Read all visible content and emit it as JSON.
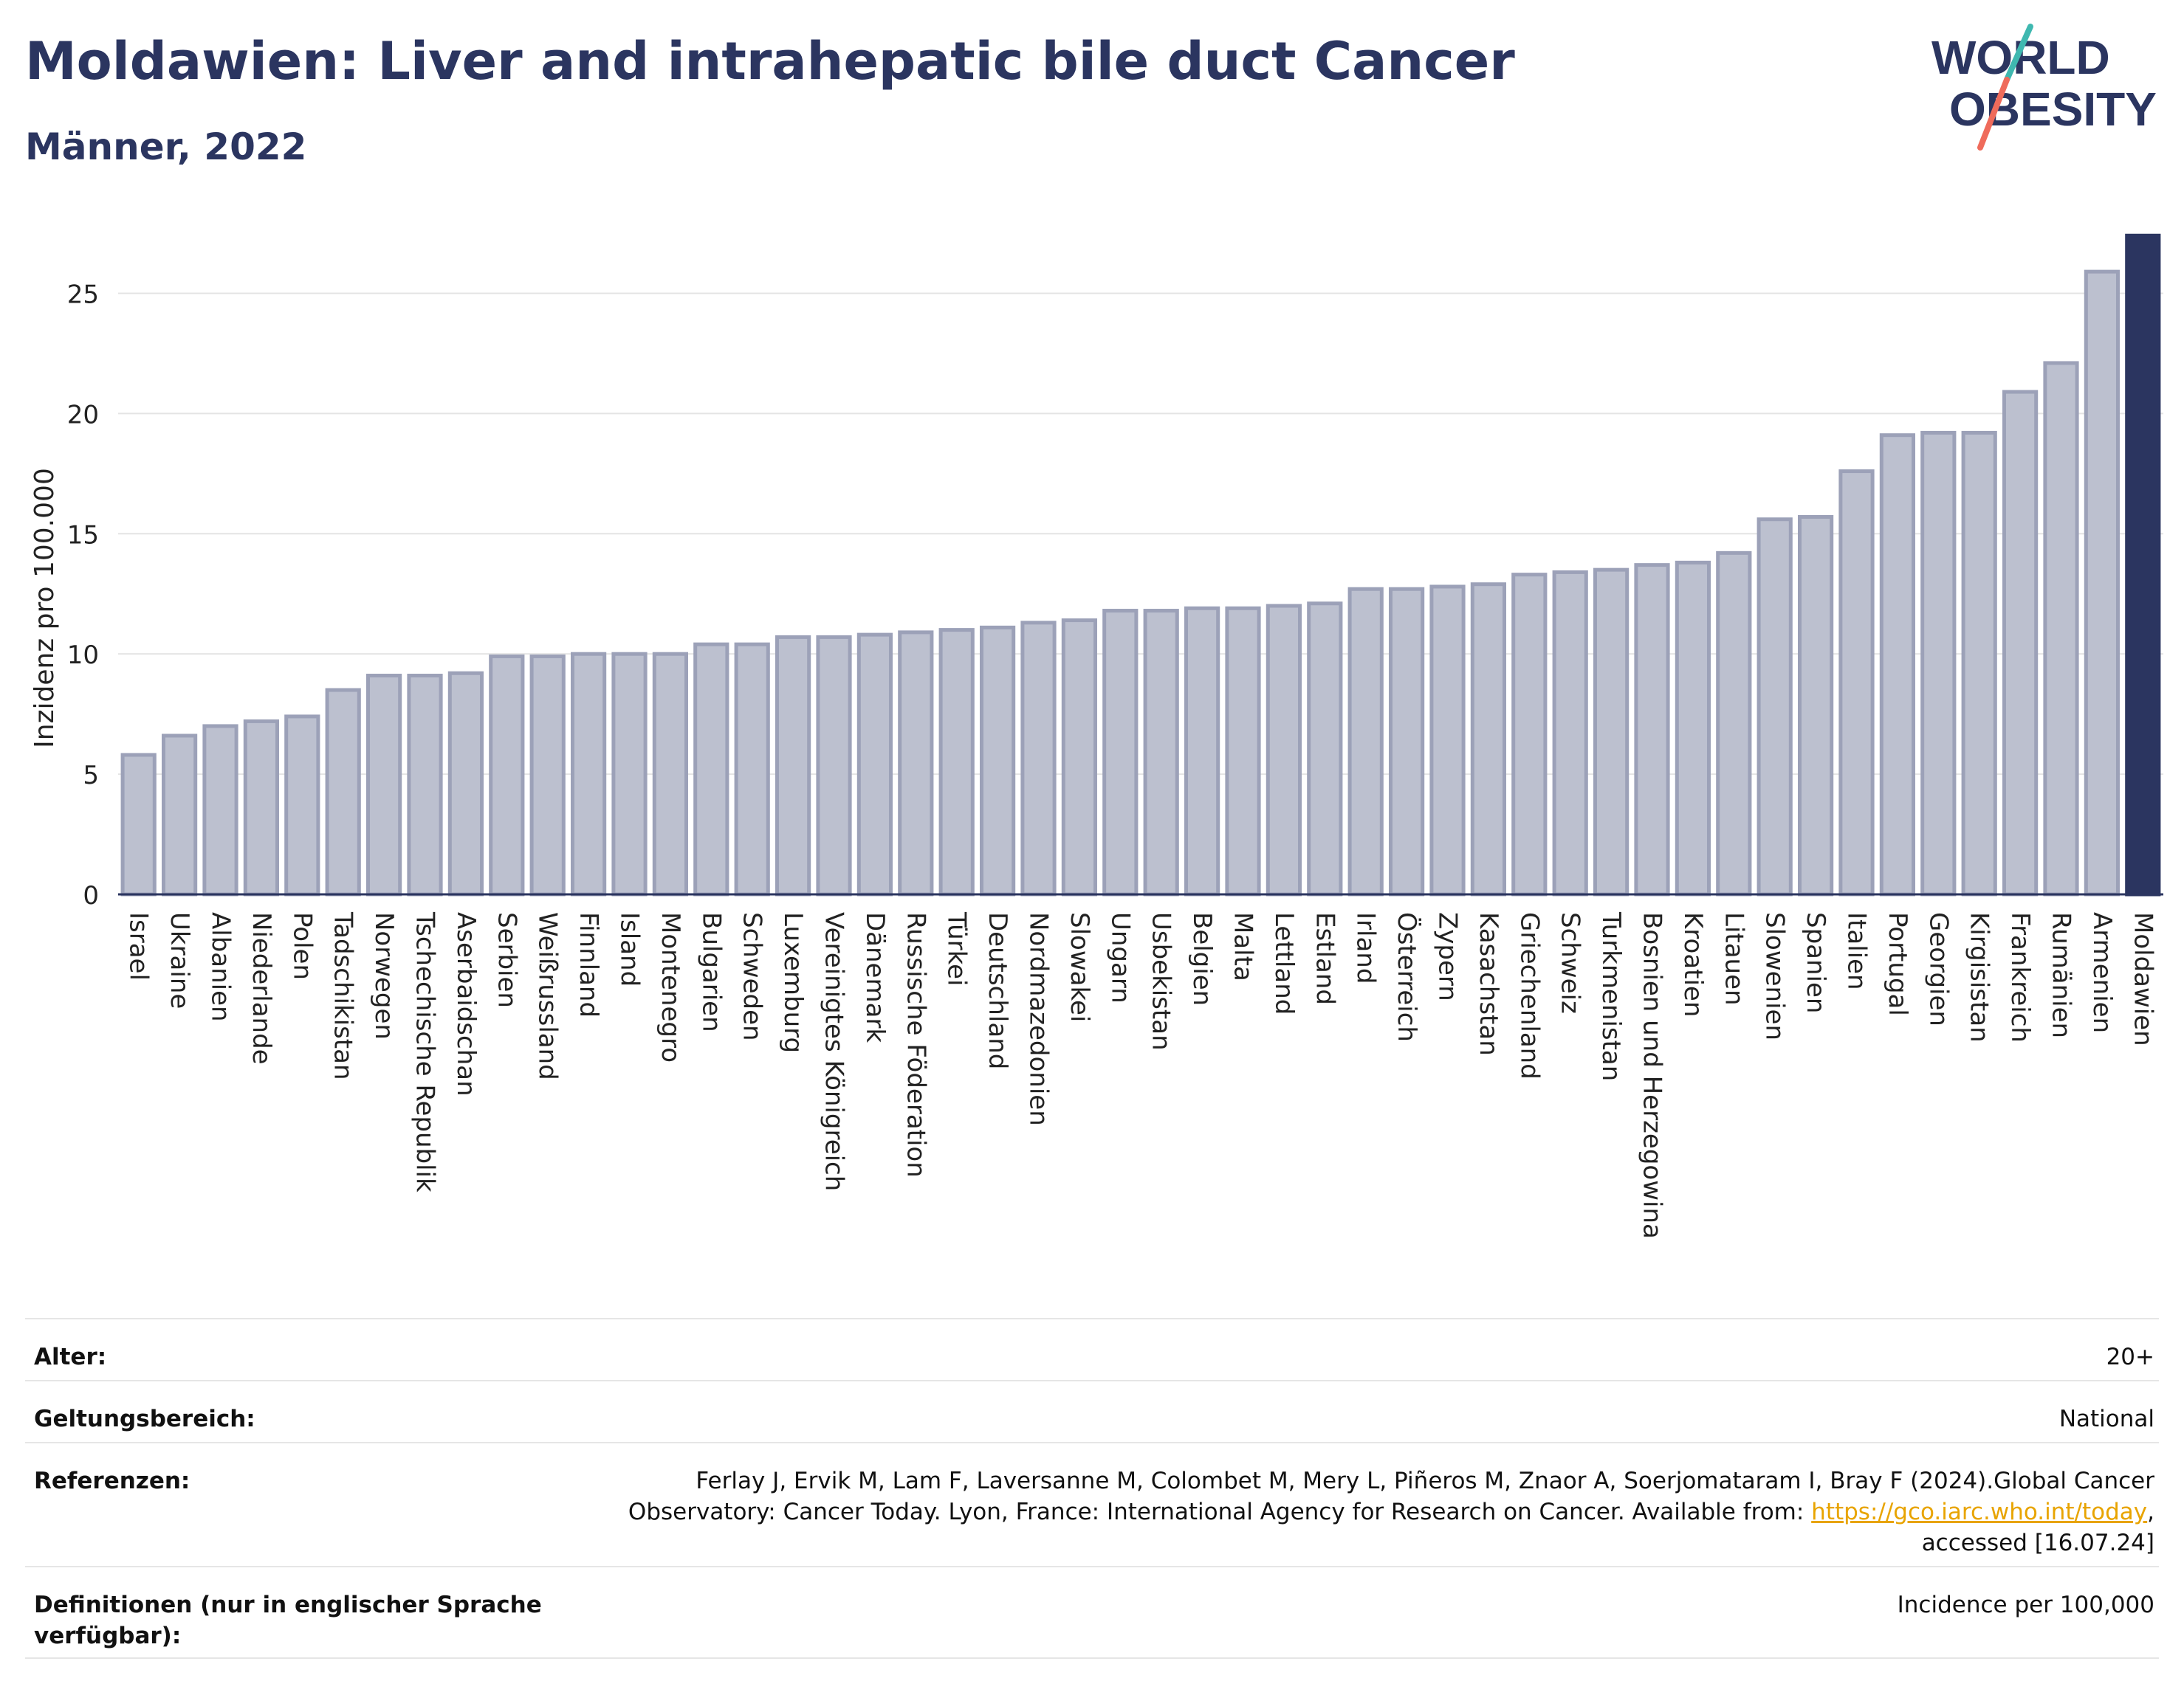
{
  "header": {
    "title": "Moldawien: Liver and intrahepatic bile duct Cancer",
    "subtitle": "Männer, 2022",
    "logo_line1": "WORLD",
    "logo_line2": "OBESITY"
  },
  "colors": {
    "title": "#2b3560",
    "bar_fill": "#bcc0cf",
    "bar_stroke": "#9ca1b8",
    "highlight": "#2b3560",
    "link": "#e8a400",
    "logo_teal": "#3fb8b0",
    "logo_coral": "#ef6b5b"
  },
  "chart_data": {
    "type": "bar",
    "ylabel": "Inzidenz pro 100.000",
    "xlabel": "",
    "ylim": [
      0,
      27.5
    ],
    "yticks": [
      0,
      5,
      10,
      15,
      20,
      25
    ],
    "grid": true,
    "highlight": "Moldawien",
    "categories": [
      "Israel",
      "Ukraine",
      "Albanien",
      "Niederlande",
      "Polen",
      "Tadschikistan",
      "Norwegen",
      "Tschechische Republik",
      "Aserbaidschan",
      "Serbien",
      "Weißrussland",
      "Finnland",
      "Island",
      "Montenegro",
      "Bulgarien",
      "Schweden",
      "Luxemburg",
      "Vereinigtes Königreich",
      "Dänemark",
      "Russische Föderation",
      "Türkei",
      "Deutschland",
      "Nordmazedonien",
      "Slowakei",
      "Ungarn",
      "Usbekistan",
      "Belgien",
      "Malta",
      "Lettland",
      "Estland",
      "Irland",
      "Österreich",
      "Zypern",
      "Kasachstan",
      "Griechenland",
      "Schweiz",
      "Turkmenistan",
      "Bosnien und Herzegowina",
      "Kroatien",
      "Litauen",
      "Slowenien",
      "Spanien",
      "Italien",
      "Portugal",
      "Georgien",
      "Kirgisistan",
      "Frankreich",
      "Rumänien",
      "Armenien",
      "Moldawien"
    ],
    "values": [
      5.8,
      6.6,
      7.0,
      7.2,
      7.4,
      8.5,
      9.1,
      9.1,
      9.2,
      9.9,
      9.9,
      10.0,
      10.0,
      10.0,
      10.4,
      10.4,
      10.7,
      10.7,
      10.8,
      10.9,
      11.0,
      11.1,
      11.3,
      11.4,
      11.8,
      11.8,
      11.9,
      11.9,
      12.0,
      12.1,
      12.7,
      12.7,
      12.8,
      12.9,
      13.3,
      13.4,
      13.5,
      13.7,
      13.8,
      14.2,
      15.6,
      15.7,
      17.6,
      19.1,
      19.2,
      19.2,
      20.9,
      22.1,
      25.9,
      27.4
    ]
  },
  "info": {
    "age_label": "Alter:",
    "age_value": "20+",
    "scope_label": "Geltungsbereich:",
    "scope_value": "National",
    "ref_label": "Referenzen:",
    "ref_line1": "Ferlay J, Ervik M, Lam F, Laversanne M, Colombet M, Mery L, Piñeros M, Znaor A, Soerjomataram I, Bray F (2024).Global Cancer",
    "ref_line2_pre": "Observatory: Cancer Today. Lyon, France: International Agency for Research on Cancer. Available from: ",
    "ref_link": "https://gco.iarc.who.int/today",
    "ref_line2_post": ",",
    "ref_line3": "accessed [16.07.24]",
    "def_label": "Definitionen (nur in englischer Sprache verfügbar):",
    "def_value": "Incidence per 100,000"
  }
}
